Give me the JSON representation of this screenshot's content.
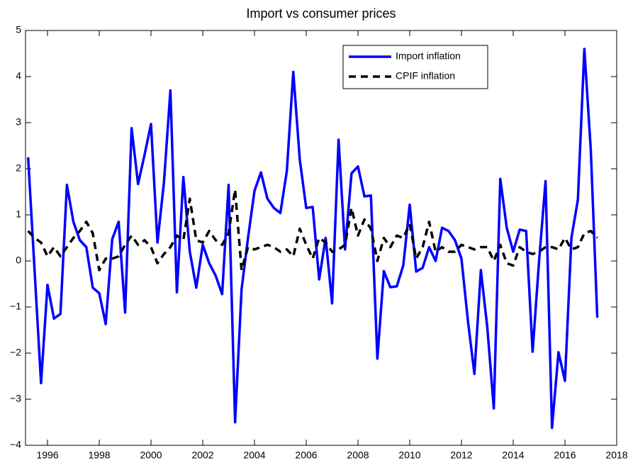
{
  "chart_data": {
    "type": "line",
    "title": "Import vs consumer prices",
    "x": [
      1995.25,
      1995.5,
      1995.75,
      1996,
      1996.25,
      1996.5,
      1996.75,
      1997,
      1997.25,
      1997.5,
      1997.75,
      1998,
      1998.25,
      1998.5,
      1998.75,
      1999,
      1999.25,
      1999.5,
      1999.75,
      2000,
      2000.25,
      2000.5,
      2000.75,
      2001,
      2001.25,
      2001.5,
      2001.75,
      2002,
      2002.25,
      2002.5,
      2002.75,
      2003,
      2003.25,
      2003.5,
      2003.75,
      2004,
      2004.25,
      2004.5,
      2004.75,
      2005,
      2005.25,
      2005.5,
      2005.75,
      2006,
      2006.25,
      2006.5,
      2006.75,
      2007,
      2007.25,
      2007.5,
      2007.75,
      2008,
      2008.25,
      2008.5,
      2008.75,
      2009,
      2009.25,
      2009.5,
      2009.75,
      2010,
      2010.25,
      2010.5,
      2010.75,
      2011,
      2011.25,
      2011.5,
      2011.75,
      2012,
      2012.25,
      2012.5,
      2012.75,
      2013,
      2013.25,
      2013.5,
      2013.75,
      2014,
      2014.25,
      2014.5,
      2014.75,
      2015,
      2015.25,
      2015.5,
      2015.75,
      2016,
      2016.25,
      2016.5,
      2016.75,
      2017,
      2017.25
    ],
    "series": [
      {
        "name": "Import inflation",
        "color": "#0000ff",
        "dash": false,
        "values": [
          2.25,
          -0.2,
          -2.65,
          -0.52,
          -1.25,
          -1.15,
          1.65,
          0.85,
          0.45,
          0.3,
          -0.58,
          -0.7,
          -1.37,
          0.47,
          0.85,
          -1.12,
          2.88,
          1.67,
          2.3,
          2.97,
          0.4,
          1.7,
          3.7,
          -0.68,
          1.82,
          0.2,
          -0.58,
          0.35,
          -0.05,
          -0.32,
          -0.72,
          1.65,
          -3.5,
          -0.62,
          0.5,
          1.52,
          1.92,
          1.35,
          1.15,
          1.04,
          1.95,
          4.1,
          2.2,
          1.15,
          1.17,
          -0.4,
          0.5,
          -0.92,
          2.63,
          0.25,
          1.9,
          2.05,
          1.4,
          1.42,
          -2.12,
          -0.22,
          -0.57,
          -0.55,
          -0.1,
          1.22,
          -0.23,
          -0.15,
          0.3,
          0.0,
          0.72,
          0.65,
          0.45,
          0.05,
          -1.3,
          -2.45,
          -0.2,
          -1.45,
          -3.2,
          1.78,
          0.72,
          0.2,
          0.68,
          0.65,
          -1.97,
          0,
          1.73,
          -3.62,
          -1.98,
          -2.6,
          0.5,
          1.33,
          4.6,
          2.4,
          -1.23
        ]
      },
      {
        "name": "CPIF inflation",
        "color": "#000000",
        "dash": true,
        "values": [
          0.65,
          0.5,
          0.4,
          0.1,
          0.3,
          0.1,
          0.3,
          0.5,
          0.65,
          0.85,
          0.6,
          -0.2,
          0.05,
          0.05,
          0.1,
          0.35,
          0.55,
          0.35,
          0.45,
          0.3,
          -0.05,
          0.15,
          0.3,
          0.55,
          0.45,
          1.35,
          0.45,
          0.4,
          0.65,
          0.45,
          0.35,
          0.6,
          1.55,
          -0.2,
          0.3,
          0.25,
          0.3,
          0.35,
          0.3,
          0.2,
          0.25,
          0.1,
          0.7,
          0.35,
          0.05,
          0.5,
          0.4,
          0.2,
          0.25,
          0.35,
          1.15,
          0.55,
          0.9,
          0.7,
          0.0,
          0.5,
          0.3,
          0.55,
          0.5,
          0.8,
          0.05,
          0.3,
          0.85,
          0.2,
          0.3,
          0.2,
          0.2,
          0.35,
          0.3,
          0.25,
          0.3,
          0.3,
          0.0,
          0.35,
          -0.05,
          -0.1,
          0.3,
          0.2,
          0.15,
          0.2,
          0.3,
          0.3,
          0.25,
          0.5,
          0.25,
          0.3,
          0.6,
          0.65,
          0.5
        ]
      }
    ],
    "xlim": [
      1995.15,
      2018
    ],
    "xticks": [
      1996,
      1998,
      2000,
      2002,
      2004,
      2006,
      2008,
      2010,
      2012,
      2014,
      2016,
      2018
    ],
    "ylim": [
      -4,
      5
    ],
    "yticks": [
      {
        "value": -4,
        "label": "−4"
      },
      {
        "value": -3,
        "label": "−3"
      },
      {
        "value": -2,
        "label": "−2"
      },
      {
        "value": -1,
        "label": "−1"
      },
      0,
      1,
      2,
      3,
      4,
      5
    ],
    "legend": "upper right",
    "grid": false
  }
}
